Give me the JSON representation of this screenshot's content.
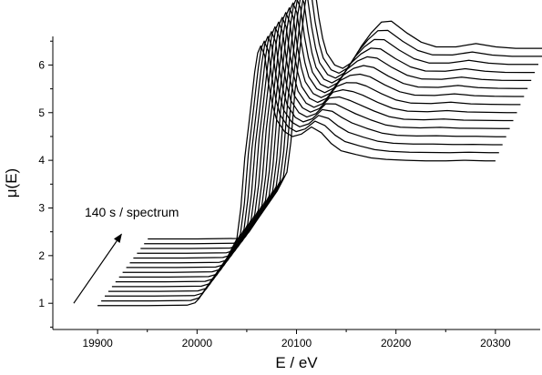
{
  "chart_data": {
    "type": "line",
    "xlabel": "E / eV",
    "ylabel": "μ(E)",
    "xlim": [
      19855,
      20345
    ],
    "ylim": [
      0.45,
      6.6
    ],
    "xticks": [
      19900,
      20000,
      20100,
      20200,
      20300
    ],
    "yticks": [
      1,
      2,
      3,
      4,
      5,
      6
    ],
    "grid": false,
    "annotation": {
      "text": "140 s / spectrum",
      "arrow_from": [
        19876,
        1.0
      ],
      "arrow_to": [
        19924,
        2.45
      ],
      "text_at": [
        19887,
        2.82
      ]
    },
    "spectra_count": 15,
    "spectra_offset": {
      "dx_per_spectrum": 3.6,
      "dy_per_spectrum": 0.1
    },
    "spectrum_template": {
      "x": [
        19900,
        19950,
        19990,
        19998,
        20002,
        20010,
        20020,
        20030,
        20040,
        20044,
        20048,
        20052,
        20055,
        20058,
        20061,
        20064,
        20068,
        20072,
        20076,
        20080,
        20088,
        20096,
        20105,
        20115,
        20125,
        20135,
        20145,
        20160,
        20175,
        20190,
        20210,
        20230,
        20250,
        20270,
        20290,
        20300
      ],
      "values_first": [
        0.95,
        0.95,
        0.96,
        1.01,
        1.1,
        1.35,
        1.65,
        1.95,
        2.35,
        3.0,
        4.05,
        4.75,
        5.3,
        5.85,
        6.25,
        6.4,
        6.2,
        5.6,
        5.15,
        4.85,
        4.6,
        4.5,
        4.55,
        4.7,
        4.58,
        4.35,
        4.2,
        4.12,
        4.05,
        4.02,
        4.0,
        3.99,
        3.99,
        4.0,
        3.99,
        3.99
      ],
      "values_last": [
        0.95,
        0.95,
        0.96,
        1.01,
        1.1,
        1.35,
        1.65,
        1.95,
        2.35,
        3.0,
        4.05,
        4.75,
        5.3,
        5.85,
        6.25,
        6.4,
        6.2,
        5.6,
        5.15,
        4.85,
        4.6,
        4.53,
        4.65,
        5.0,
        5.28,
        5.5,
        5.52,
        5.28,
        5.08,
        4.98,
        4.98,
        5.05,
        4.98,
        4.95,
        4.95,
        4.95
      ]
    }
  }
}
